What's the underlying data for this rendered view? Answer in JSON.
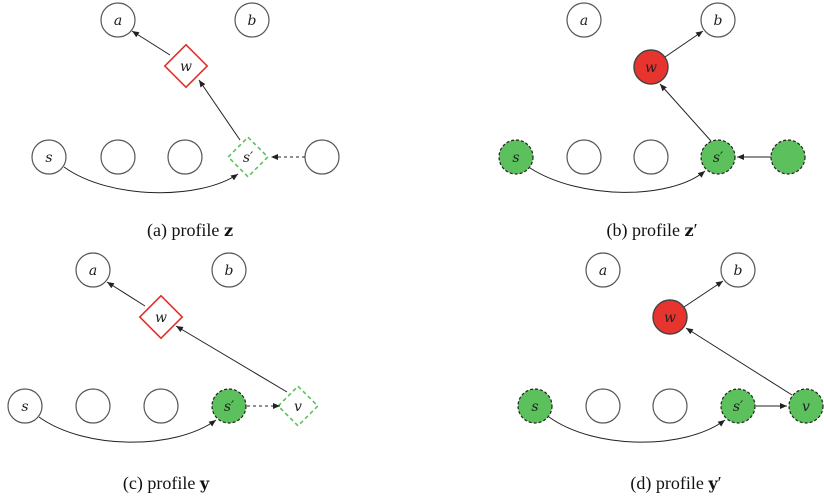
{
  "panels": [
    {
      "id": "a",
      "caption_prefix": "(a) profile ",
      "caption_symbol": "z",
      "caption_prime": "",
      "labels": {
        "a": "a",
        "b": "b",
        "w": "w",
        "s": "s",
        "sp": "s′",
        "v": ""
      }
    },
    {
      "id": "b",
      "caption_prefix": "(b) profile ",
      "caption_symbol": "z",
      "caption_prime": "′",
      "labels": {
        "a": "a",
        "b": "b",
        "w": "w",
        "s": "s",
        "sp": "s′",
        "v": ""
      }
    },
    {
      "id": "c",
      "caption_prefix": "(c) profile ",
      "caption_symbol": "y",
      "caption_prime": "",
      "labels": {
        "a": "a",
        "b": "b",
        "w": "w",
        "s": "s",
        "sp": "s′",
        "v": "v"
      }
    },
    {
      "id": "d",
      "caption_prefix": "(d) profile ",
      "caption_symbol": "y",
      "caption_prime": "′",
      "labels": {
        "a": "a",
        "b": "b",
        "w": "w",
        "s": "s",
        "sp": "s′",
        "v": "v"
      }
    }
  ],
  "colors": {
    "red_stroke": "#e0302a",
    "red_fill": "#e8342e",
    "green_fill": "#5cc15c",
    "green_stroke": "#5cc15c",
    "node_stroke": "#555555"
  }
}
